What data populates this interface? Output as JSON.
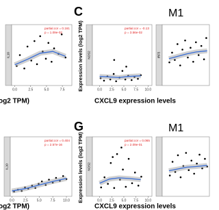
{
  "figure": {
    "panel_labels": [
      "C",
      "G"
    ],
    "titles": [
      "M1",
      "M1"
    ],
    "y_axis_label": "Expression levels (log2 TPM)",
    "x_axis_label": "CXCL9 expression levels",
    "left_x_axis_label": "og2 TPM)"
  },
  "chart_data": [
    {
      "type": "scatter",
      "strip": "IL10",
      "annotations": [
        "partial.cor = 0.161",
        "p = 1.09e-02"
      ],
      "xlim": [
        -0.5,
        9
      ],
      "ylim": [
        0,
        10
      ],
      "xticks": [
        {
          "value": 0,
          "label": "0.0"
        },
        2.5,
        {
          "value": 5,
          "label": "5.0"
        },
        7.5
      ],
      "x": [
        0.3,
        0.8,
        1.5,
        2.0,
        2.6,
        3.1,
        3.5,
        4.0,
        4.4,
        4.9,
        5.3,
        5.8,
        6.2,
        6.9,
        7.4,
        8.0
      ],
      "y": [
        3.2,
        5.0,
        2.8,
        6.4,
        4.1,
        7.3,
        3.5,
        8.1,
        5.6,
        4.4,
        7.0,
        3.9,
        6.1,
        5.2,
        8.4,
        4.6
      ],
      "fit": {
        "x": [
          0,
          2,
          4,
          6,
          8
        ],
        "y": [
          3.4,
          4.3,
          5.3,
          5.6,
          4.8
        ]
      }
    },
    {
      "type": "scatter",
      "strip": "NOS2",
      "annotations": [
        "partial.cor = -0.13",
        "p = 3.56e-02"
      ],
      "xlim": [
        -1.5,
        10.8
      ],
      "ylim": [
        0,
        10
      ],
      "xticks": [
        {
          "value": 0,
          "label": "0.0"
        },
        2.5,
        {
          "value": 5,
          "label": "5.0"
        },
        7.5,
        {
          "value": 10,
          "label": "10.0"
        }
      ],
      "x": [
        0.2,
        0.9,
        1.6,
        2.2,
        2.9,
        3.4,
        4.1,
        4.7,
        5.3,
        5.9,
        6.6,
        7.2,
        7.9,
        8.5,
        3.0,
        5.5
      ],
      "y": [
        1.2,
        0.8,
        1.5,
        1.0,
        1.9,
        0.7,
        1.3,
        2.4,
        1.0,
        1.6,
        0.9,
        1.4,
        1.1,
        1.7,
        4.2,
        3.1
      ],
      "fit": {
        "x": [
          0,
          2,
          4,
          6,
          8.5
        ],
        "y": [
          1.5,
          1.4,
          1.3,
          1.5,
          1.6
        ]
      }
    },
    {
      "type": "scatter",
      "strip": "IRF5",
      "annotations": [],
      "xlim": [
        -1.5,
        9
      ],
      "ylim": [
        0,
        10
      ],
      "xticks": [],
      "x": [
        0.1,
        0.7,
        1.3,
        1.9,
        2.5,
        3.0,
        3.6,
        4.2,
        4.8,
        5.4,
        6.0,
        6.6,
        7.2,
        7.8,
        8.3
      ],
      "y": [
        3.8,
        5.4,
        4.2,
        6.8,
        3.3,
        5.9,
        7.4,
        4.6,
        6.2,
        3.9,
        7.1,
        5.0,
        6.5,
        4.3,
        7.8
      ],
      "fit": {
        "x": [
          0,
          2,
          4,
          6,
          8.5
        ],
        "y": [
          4.4,
          4.8,
          5.2,
          5.5,
          5.7
        ]
      }
    },
    {
      "type": "scatter",
      "strip": "IL10",
      "annotations": [
        "partial.cor = 0.404",
        "p = 2.57e-16"
      ],
      "xlim": [
        -0.3,
        11
      ],
      "ylim": [
        0,
        10
      ],
      "xticks": [
        {
          "value": 0,
          "label": "0.0"
        },
        2.5,
        {
          "value": 5,
          "label": "5.0"
        },
        7.5,
        {
          "value": 10,
          "label": "10.0"
        }
      ],
      "x": [
        0.4,
        1.1,
        1.8,
        2.4,
        3.0,
        3.7,
        4.3,
        4.9,
        5.5,
        6.2,
        6.8,
        7.5,
        8.1,
        8.8,
        9.4,
        10.0
      ],
      "y": [
        0.8,
        1.1,
        0.9,
        1.5,
        1.3,
        1.8,
        1.4,
        2.1,
        2.5,
        1.9,
        2.8,
        2.3,
        3.1,
        2.6,
        3.4,
        2.9
      ],
      "fit": {
        "x": [
          0,
          2.5,
          5,
          7.5,
          10
        ],
        "y": [
          0.9,
          1.3,
          1.9,
          2.5,
          3.0
        ]
      }
    },
    {
      "type": "scatter",
      "strip": "NOS2",
      "annotations": [
        "partial.cor = 0.065",
        "p = 2.09e-01"
      ],
      "xlim": [
        -1.5,
        10.8
      ],
      "ylim": [
        0,
        10
      ],
      "xticks": [
        {
          "value": 0,
          "label": "0.0"
        },
        2.5,
        {
          "value": 5,
          "label": "5.0"
        },
        7.5,
        {
          "value": 10,
          "label": "10.0"
        }
      ],
      "x": [
        0.3,
        1.0,
        1.7,
        2.3,
        3.0,
        3.6,
        4.2,
        4.8,
        5.4,
        6.0,
        6.7,
        7.3,
        8.0,
        8.6,
        4.5,
        2.7
      ],
      "y": [
        1.5,
        3.2,
        2.1,
        5.6,
        1.4,
        7.1,
        2.8,
        4.5,
        1.6,
        6.3,
        2.2,
        4.0,
        1.8,
        3.3,
        8.2,
        6.6
      ],
      "fit": {
        "x": [
          0,
          2,
          4,
          6,
          8.5
        ],
        "y": [
          2.2,
          2.9,
          3.1,
          3.0,
          2.8
        ]
      }
    },
    {
      "type": "scatter",
      "strip": null,
      "annotations": [],
      "xlim": [
        -1.5,
        9
      ],
      "ylim": [
        0,
        10
      ],
      "xticks": [],
      "x": [
        0.2,
        0.8,
        1.4,
        2.0,
        2.6,
        3.2,
        3.8,
        4.4,
        5.0,
        5.6,
        6.2,
        6.8,
        7.4,
        8.0,
        8.5
      ],
      "y": [
        3.5,
        5.8,
        4.1,
        6.9,
        3.2,
        5.1,
        7.3,
        4.4,
        6.0,
        3.8,
        5.5,
        7.0,
        4.7,
        6.3,
        5.0
      ],
      "fit": {
        "x": [
          0,
          2,
          4,
          6,
          8.5
        ],
        "y": [
          4.3,
          4.6,
          4.9,
          5.0,
          5.2
        ]
      }
    }
  ]
}
